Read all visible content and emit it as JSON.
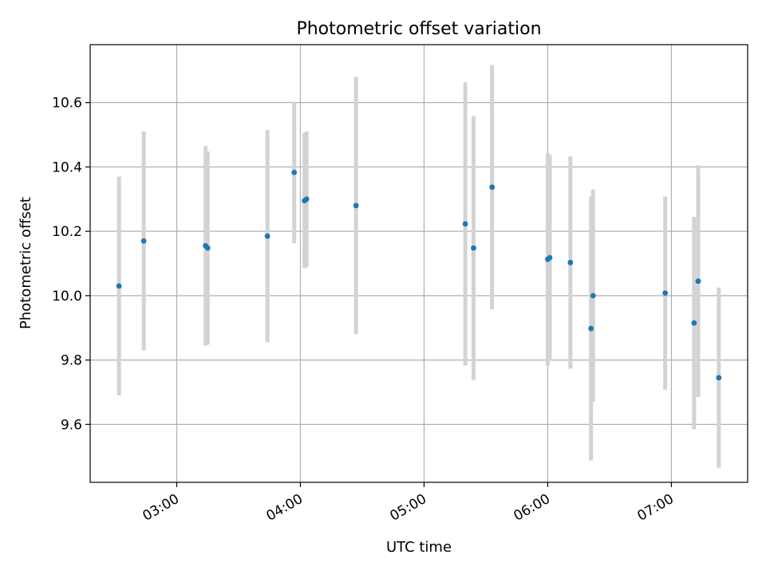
{
  "chart_data": {
    "type": "scatter",
    "title": "Photometric offset variation",
    "xlabel": "UTC time",
    "ylabel": "Photometric offset",
    "x_ticks": [
      "03:00",
      "04:00",
      "05:00",
      "06:00",
      "07:00"
    ],
    "y_ticks": [
      "9.6",
      "9.8",
      "10.0",
      "10.2",
      "10.4",
      "10.6"
    ],
    "xlim": [
      "02:18",
      "07:37"
    ],
    "ylim": [
      9.42,
      10.78
    ],
    "grid": true,
    "colors": {
      "point": "#1f77b4",
      "errorbar": "#d3d3d3",
      "grid": "#b0b0b0"
    },
    "points": [
      {
        "time": "02:32",
        "y": 10.03,
        "err": 0.34
      },
      {
        "time": "02:44",
        "y": 10.17,
        "err": 0.34
      },
      {
        "time": "03:14",
        "y": 10.155,
        "err": 0.31
      },
      {
        "time": "03:15",
        "y": 10.148,
        "err": 0.3
      },
      {
        "time": "03:44",
        "y": 10.185,
        "err": 0.33
      },
      {
        "time": "03:57",
        "y": 10.383,
        "err": 0.22
      },
      {
        "time": "04:02",
        "y": 10.295,
        "err": 0.21
      },
      {
        "time": "04:03",
        "y": 10.3,
        "err": 0.21
      },
      {
        "time": "04:27",
        "y": 10.28,
        "err": 0.4
      },
      {
        "time": "05:20",
        "y": 10.223,
        "err": 0.44
      },
      {
        "time": "05:24",
        "y": 10.148,
        "err": 0.41
      },
      {
        "time": "05:33",
        "y": 10.337,
        "err": 0.38
      },
      {
        "time": "06:00",
        "y": 10.113,
        "err": 0.33
      },
      {
        "time": "06:01",
        "y": 10.118,
        "err": 0.32
      },
      {
        "time": "06:11",
        "y": 10.103,
        "err": 0.33
      },
      {
        "time": "06:21",
        "y": 9.898,
        "err": 0.41
      },
      {
        "time": "06:22",
        "y": 10.0,
        "err": 0.33
      },
      {
        "time": "06:57",
        "y": 10.008,
        "err": 0.3
      },
      {
        "time": "07:11",
        "y": 9.915,
        "err": 0.33
      },
      {
        "time": "07:13",
        "y": 10.045,
        "err": 0.36
      },
      {
        "time": "07:23",
        "y": 9.745,
        "err": 0.28
      }
    ]
  }
}
